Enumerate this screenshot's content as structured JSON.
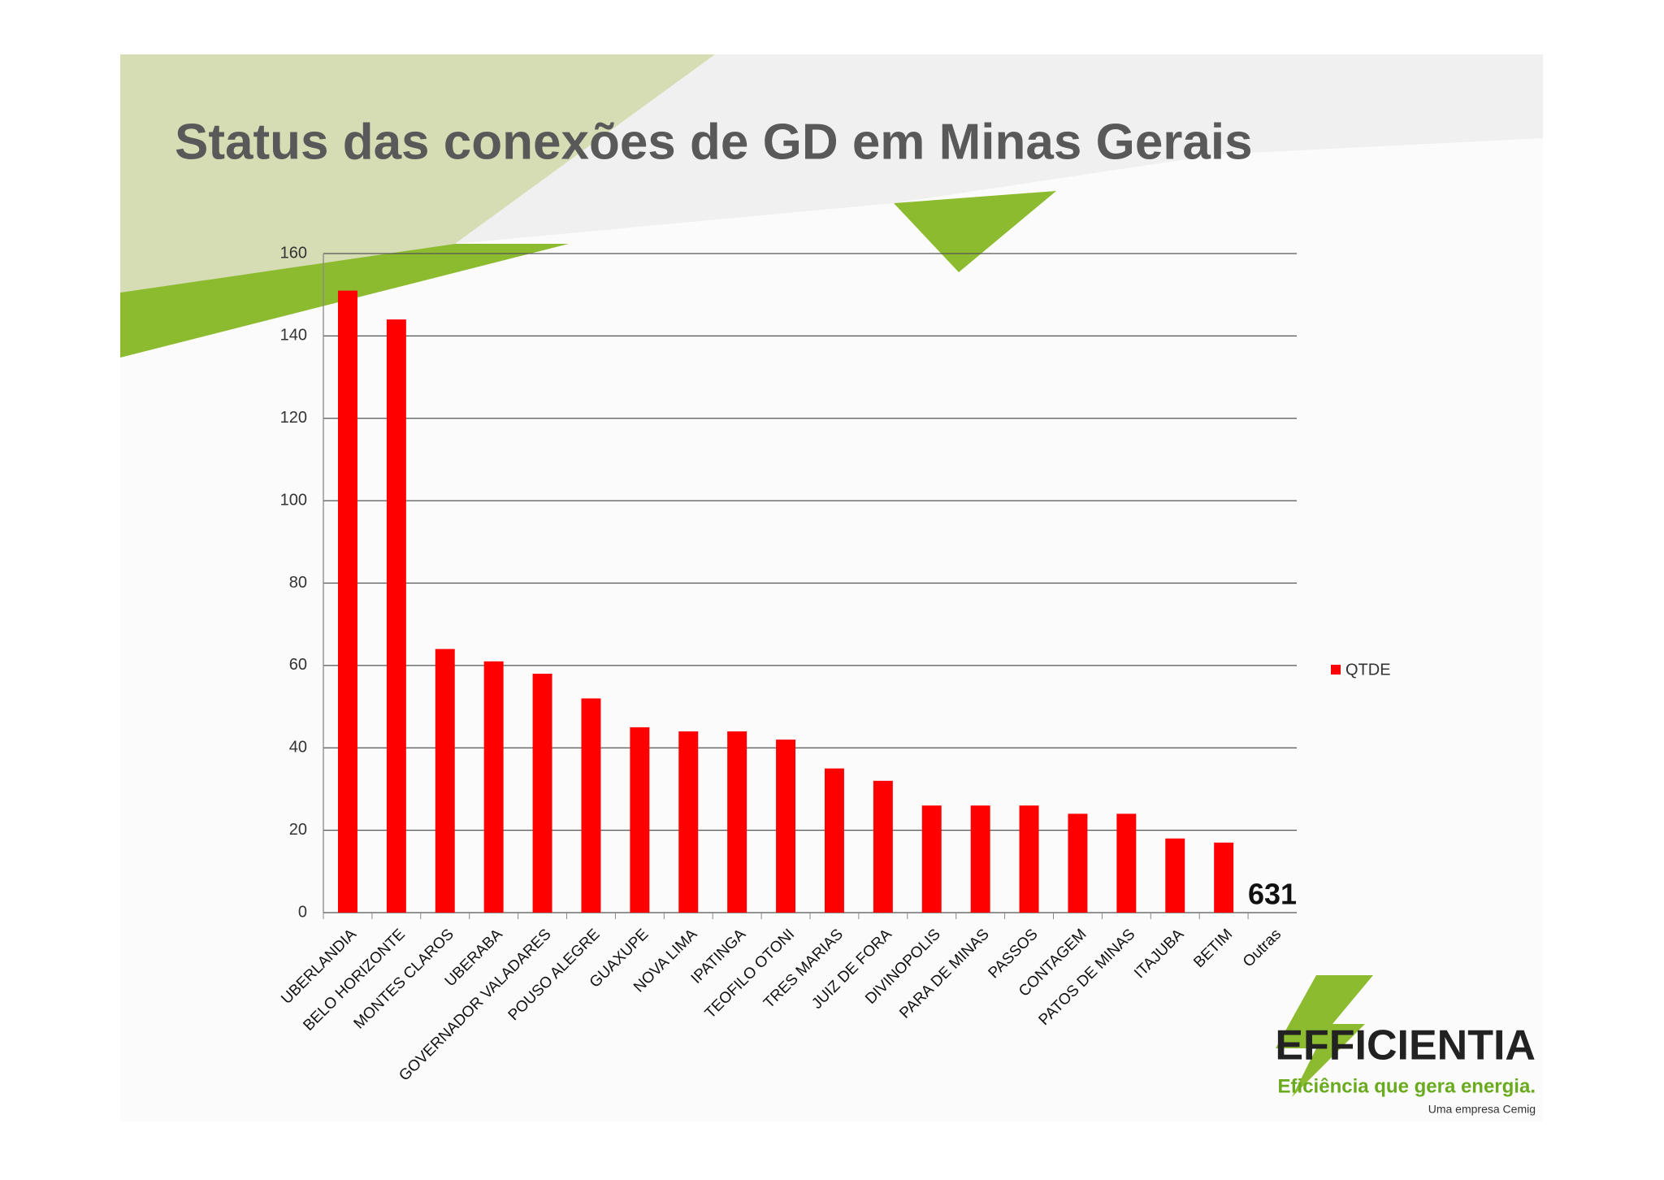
{
  "chart_data": {
    "type": "bar",
    "title": "Status das conexões de GD em Minas Gerais",
    "categories": [
      "UBERLANDIA",
      "BELO HORIZONTE",
      "MONTES CLAROS",
      "UBERABA",
      "GOVERNADOR VALADARES",
      "POUSO ALEGRE",
      "GUAXUPE",
      "NOVA LIMA",
      "IPATINGA",
      "TEOFILO OTONI",
      "TRES MARIAS",
      "JUIZ DE FORA",
      "DIVINOPOLIS",
      "PARA DE MINAS",
      "PASSOS",
      "CONTAGEM",
      "PATOS DE MINAS",
      "ITAJUBA",
      "BETIM",
      "Outras"
    ],
    "series": [
      {
        "name": "QTDE",
        "color": "#ff0000",
        "values": [
          151,
          144,
          64,
          61,
          58,
          52,
          45,
          44,
          44,
          42,
          35,
          32,
          26,
          26,
          26,
          24,
          24,
          18,
          17,
          null
        ]
      }
    ],
    "annotation": "631",
    "ylim": [
      0,
      160
    ],
    "yticks": [
      0,
      20,
      40,
      60,
      80,
      100,
      120,
      140,
      160
    ],
    "grid": true,
    "legend": "right"
  },
  "logo": {
    "name": "EFFICIENTIA",
    "slogan": "Eficiência que gera energia.",
    "tagline": "Uma empresa Cemig"
  }
}
